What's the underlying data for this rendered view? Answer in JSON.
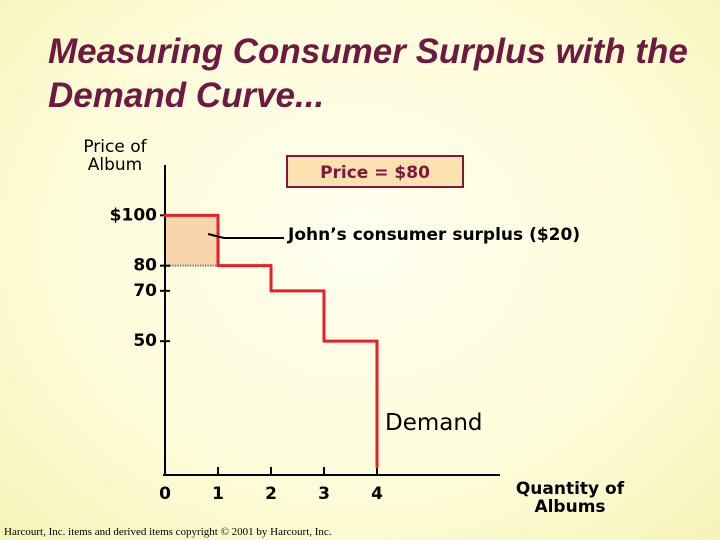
{
  "chart_data": {
    "type": "step",
    "title": "Measuring Consumer Surplus with the Demand Curve...",
    "y_label": "Price of Album",
    "x_label": "Quantity of Albums",
    "x": [
      0,
      1,
      2,
      3,
      4
    ],
    "values": [
      100,
      80,
      70,
      50,
      0
    ],
    "color": "#e5202a",
    "series_label": "Demand",
    "price": 80,
    "price_label": "Price = $80",
    "surplus_label": "John’s consumer surplus ($20)",
    "surplus_color": "#f6d6aa",
    "xlim": [
      0,
      6
    ],
    "ylim": [
      0,
      120
    ],
    "xticks": [
      0,
      1,
      2,
      3,
      4
    ],
    "yticks": [
      {
        "value": 100,
        "label": "$100"
      },
      80,
      70,
      50
    ],
    "credit": "Harcourt, Inc. items and derived items copyright © 2001 by Harcourt, Inc."
  }
}
